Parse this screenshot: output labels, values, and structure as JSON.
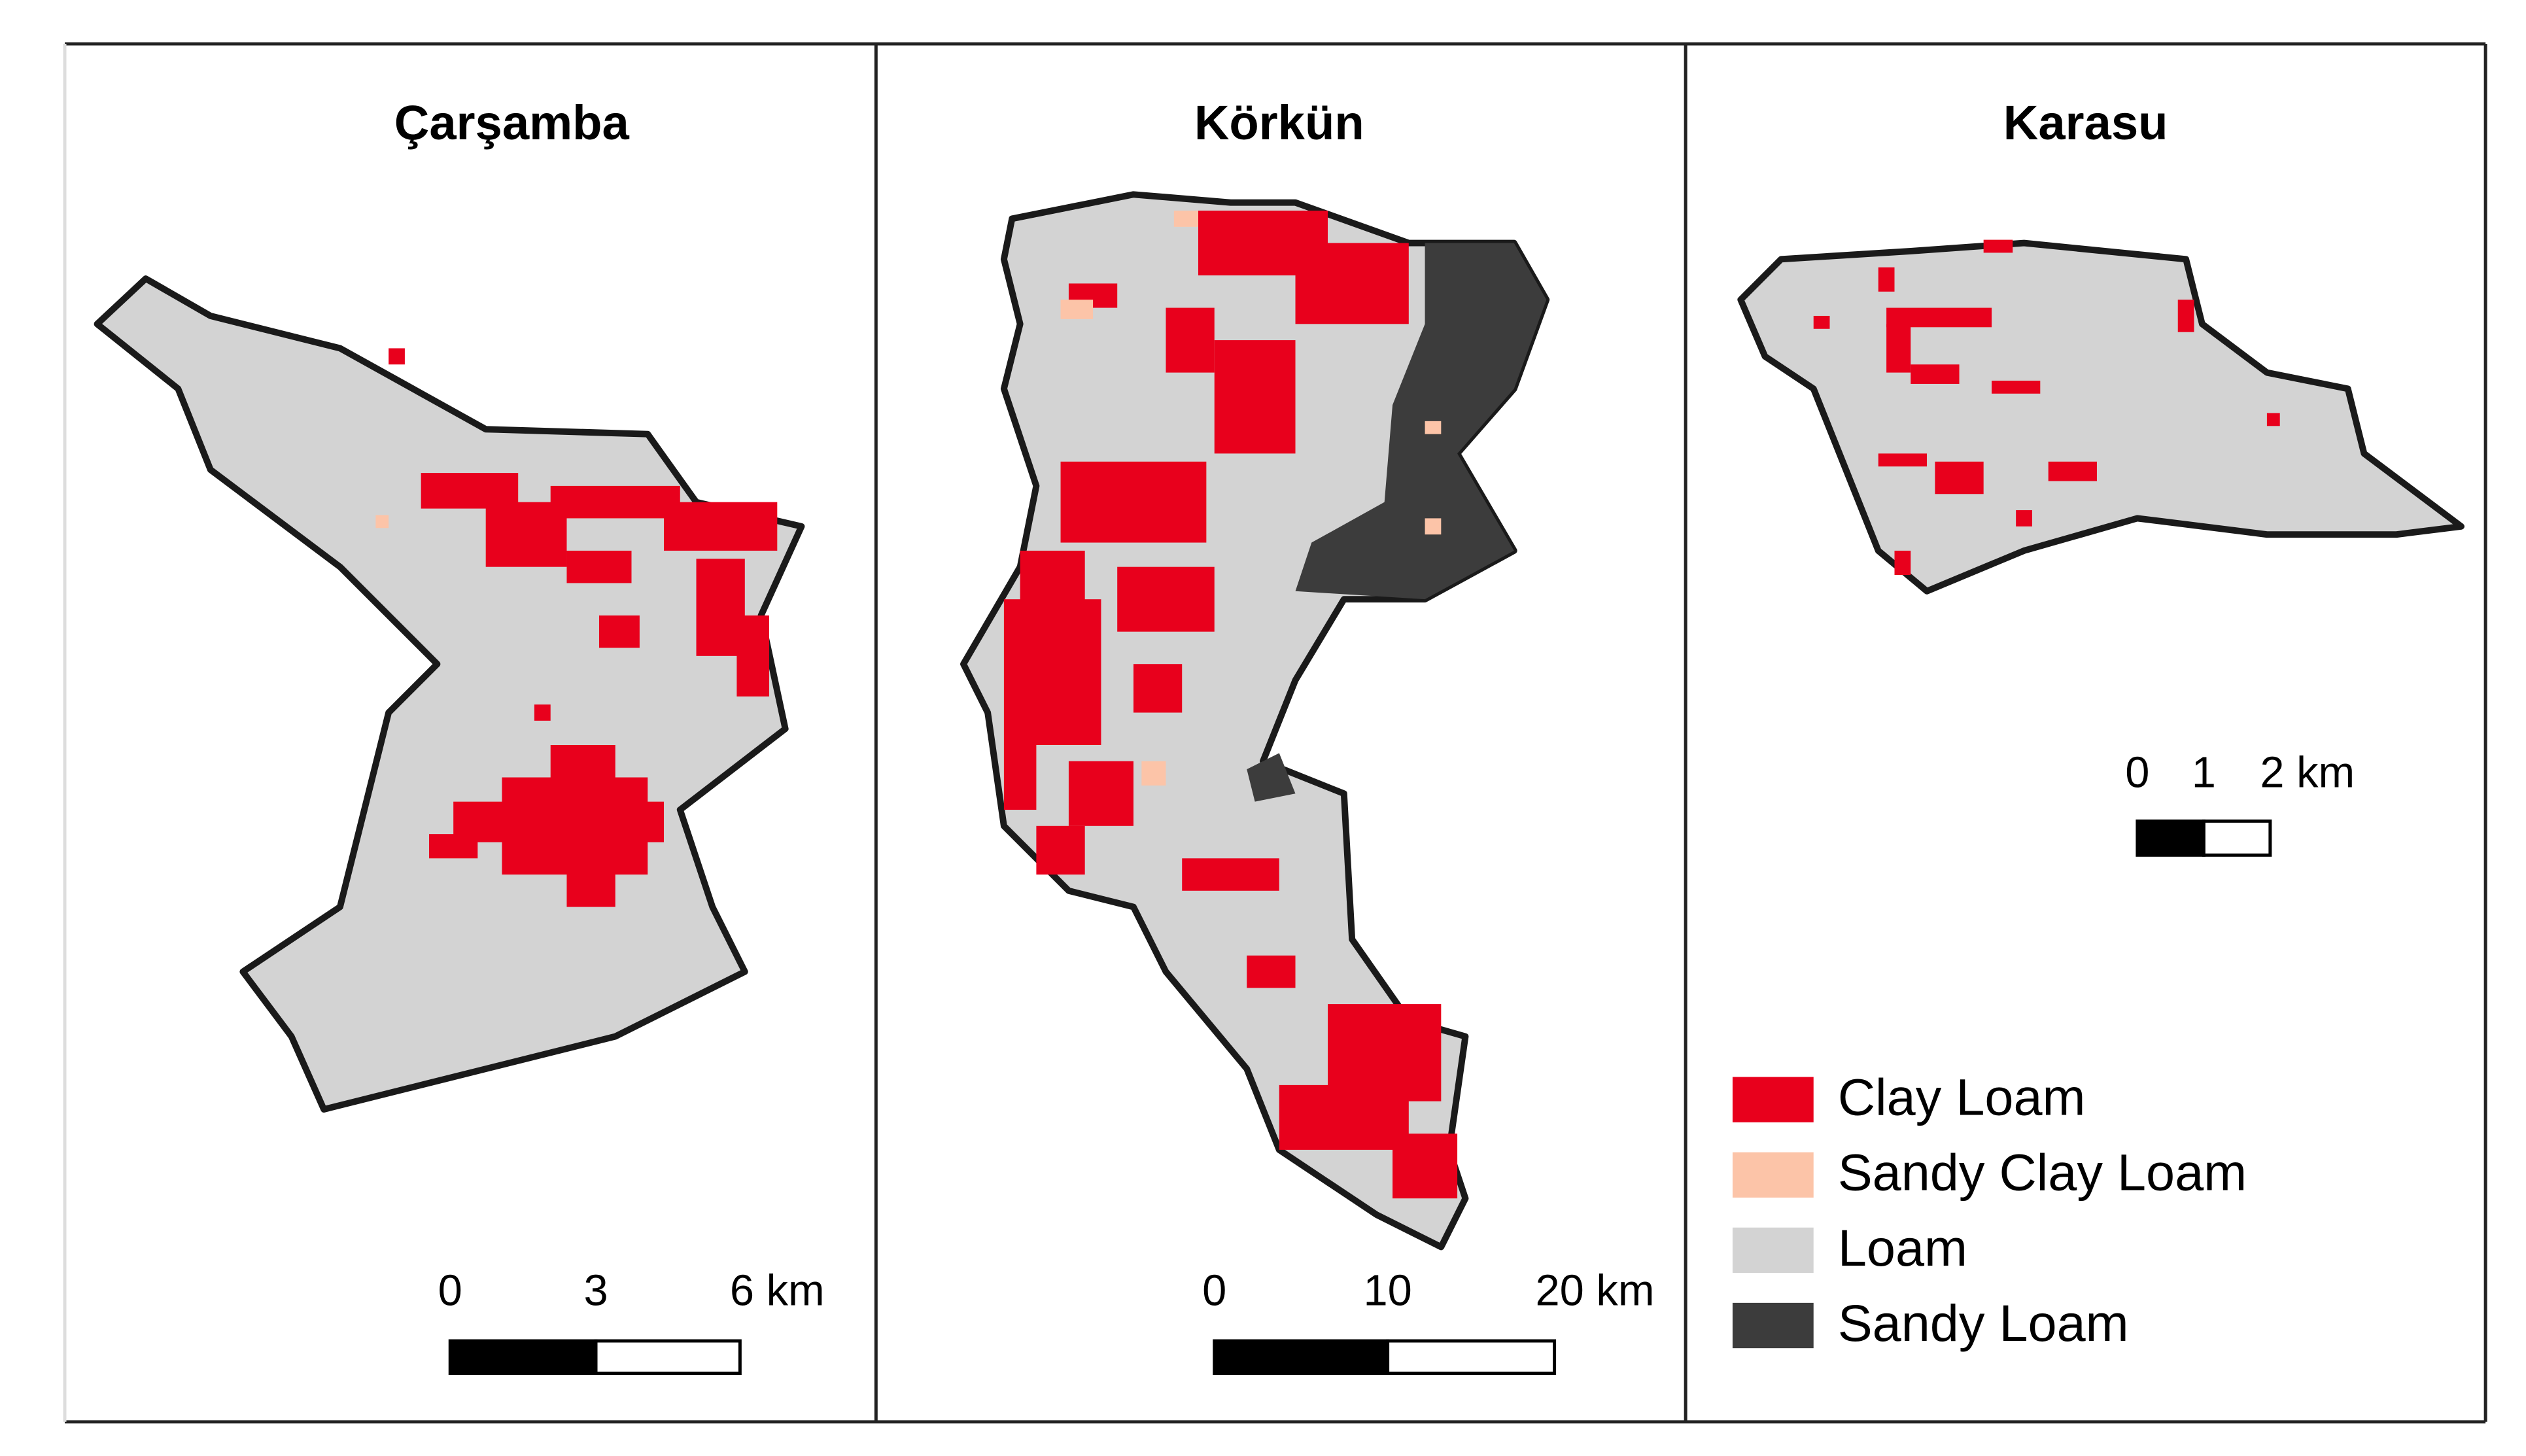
{
  "panels": [
    {
      "title": "Çarşamba",
      "scale_labels": [
        "0",
        "3",
        "6 km"
      ]
    },
    {
      "title": "Körkün",
      "scale_labels": [
        "0",
        "10",
        "20 km"
      ]
    },
    {
      "title": "Karasu",
      "scale_labels": [
        "0",
        "1",
        "2 km"
      ]
    }
  ],
  "legend": [
    {
      "label": "Clay Loam",
      "color": "#e8001c"
    },
    {
      "label": "Sandy Clay Loam",
      "color": "#fcc4a8"
    },
    {
      "label": "Loam",
      "color": "#d3d3d3"
    },
    {
      "label": "Sandy Loam",
      "color": "#3c3c3c"
    }
  ]
}
